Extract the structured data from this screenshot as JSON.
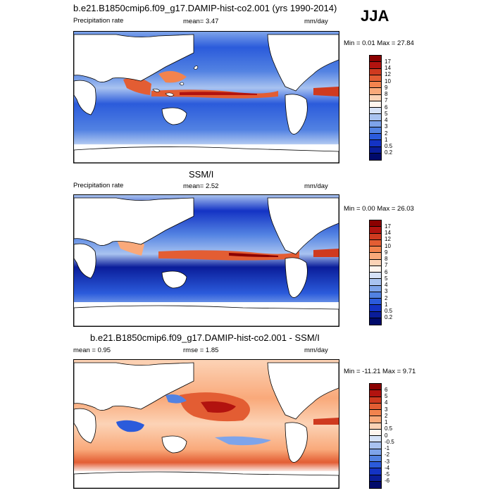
{
  "season": "JJA",
  "panels": [
    {
      "title": "b.e21.B1850cmip6.f09_g17.DAMIP-hist-co2.001 (yrs 1990-2014)",
      "left_label": "Precipitation rate",
      "mid_label": "mean=   3.47",
      "units": "mm/day",
      "minmax": "Min =   0.01 Max =   27.84",
      "colorbar_labels": [
        "17",
        "14",
        "12",
        "10",
        "9",
        "8",
        "7",
        "6",
        "5",
        "4",
        "3",
        "2",
        "1",
        "0.5",
        "0.2"
      ],
      "colorbar_colors": [
        "#8b0000",
        "#b2130f",
        "#cf3a1f",
        "#e35d33",
        "#f2834e",
        "#f9a97a",
        "#fcd3b6",
        "#fff5ee",
        "#d6e2f7",
        "#a9c3f0",
        "#7ea4ea",
        "#5282e2",
        "#2b5bdb",
        "#1433c4",
        "#0a1d9a",
        "#000a6b"
      ]
    },
    {
      "title": "SSM/I",
      "left_label": "Precipitation rate",
      "mid_label": "mean=   2.52",
      "units": "mm/day",
      "minmax": "Min =   0.00 Max =   26.03",
      "colorbar_labels": [
        "17",
        "14",
        "12",
        "10",
        "9",
        "8",
        "7",
        "6",
        "5",
        "4",
        "3",
        "2",
        "1",
        "0.5",
        "0.2"
      ],
      "colorbar_colors": [
        "#8b0000",
        "#b2130f",
        "#cf3a1f",
        "#e35d33",
        "#f2834e",
        "#f9a97a",
        "#fcd3b6",
        "#fff5ee",
        "#d6e2f7",
        "#a9c3f0",
        "#7ea4ea",
        "#5282e2",
        "#2b5bdb",
        "#1433c4",
        "#0a1d9a",
        "#000a6b"
      ]
    },
    {
      "title": "b.e21.B1850cmip6.f09_g17.DAMIP-hist-co2.001 - SSM/I",
      "left_label": "mean =   0.95",
      "mid_label": "rmse =   1.85",
      "units": "mm/day",
      "minmax": "Min =  -11.21 Max =   9.71",
      "colorbar_labels": [
        "6",
        "5",
        "4",
        "3",
        "2",
        "1",
        "0.5",
        "0",
        "-0.5",
        "-1",
        "-2",
        "-3",
        "-4",
        "-5",
        "-6"
      ],
      "colorbar_colors": [
        "#8b0000",
        "#b2130f",
        "#cf3a1f",
        "#e35d33",
        "#f2834e",
        "#f9a97a",
        "#fcd3b6",
        "#fff5ee",
        "#d6e2f7",
        "#a9c3f0",
        "#7ea4ea",
        "#5282e2",
        "#2b5bdb",
        "#1433c4",
        "#0a1d9a",
        "#000a6b"
      ]
    }
  ]
}
